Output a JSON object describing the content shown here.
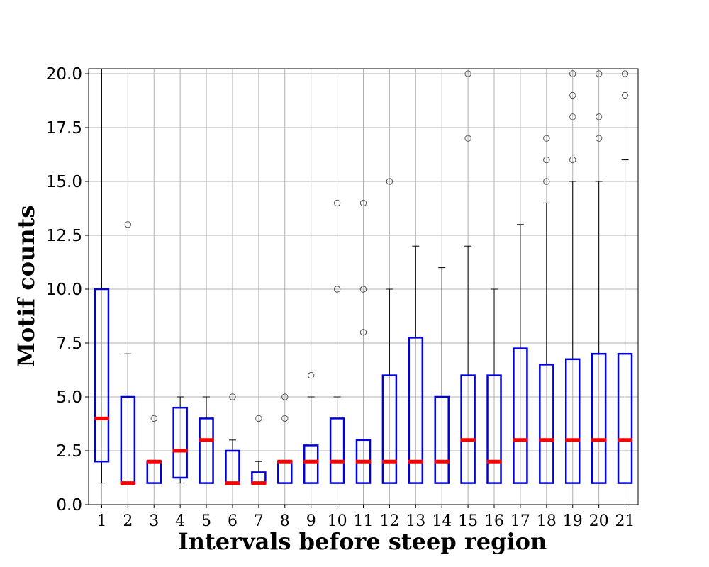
{
  "chart_data": {
    "type": "box",
    "title": "",
    "xlabel": "Intervals before steep region",
    "ylabel": "Motif counts",
    "ylim": [
      0,
      20.2
    ],
    "yticks": [
      "0.0",
      "2.5",
      "5.0",
      "7.5",
      "10.0",
      "12.5",
      "15.0",
      "17.5",
      "20.0"
    ],
    "grid": true,
    "colors": {
      "box": "#0000dd",
      "median": "#ff0000",
      "whisker": "#000000",
      "flier": "#555555",
      "grid": "#b0b0b0"
    },
    "categories": [
      "1",
      "2",
      "3",
      "4",
      "5",
      "6",
      "7",
      "8",
      "9",
      "10",
      "11",
      "12",
      "13",
      "14",
      "15",
      "16",
      "17",
      "18",
      "19",
      "20",
      "21"
    ],
    "boxes": [
      {
        "q1": 2,
        "median": 4,
        "q3": 10,
        "whislo": 1,
        "whishi": 20.2,
        "fliers": []
      },
      {
        "q1": 1,
        "median": 1,
        "q3": 5,
        "whislo": 1,
        "whishi": 7,
        "fliers": [
          13
        ]
      },
      {
        "q1": 1,
        "median": 2,
        "q3": 2,
        "whislo": 1,
        "whishi": 2,
        "fliers": [
          4
        ]
      },
      {
        "q1": 1.25,
        "median": 2.5,
        "q3": 4.5,
        "whislo": 1,
        "whishi": 5,
        "fliers": []
      },
      {
        "q1": 1,
        "median": 3,
        "q3": 4,
        "whislo": 1,
        "whishi": 5,
        "fliers": []
      },
      {
        "q1": 1,
        "median": 1,
        "q3": 2.5,
        "whislo": 1,
        "whishi": 3,
        "fliers": [
          5
        ]
      },
      {
        "q1": 1,
        "median": 1,
        "q3": 1.5,
        "whislo": 1,
        "whishi": 2,
        "fliers": [
          4
        ]
      },
      {
        "q1": 1,
        "median": 2,
        "q3": 2,
        "whislo": 1,
        "whishi": 2,
        "fliers": [
          4,
          5
        ]
      },
      {
        "q1": 1,
        "median": 2,
        "q3": 2.75,
        "whislo": 1,
        "whishi": 5,
        "fliers": [
          6
        ]
      },
      {
        "q1": 1,
        "median": 2,
        "q3": 4,
        "whislo": 1,
        "whishi": 5,
        "fliers": [
          10,
          14
        ]
      },
      {
        "q1": 1,
        "median": 2,
        "q3": 3,
        "whislo": 1,
        "whishi": 3,
        "fliers": [
          8,
          10,
          14
        ]
      },
      {
        "q1": 1,
        "median": 2,
        "q3": 6,
        "whislo": 1,
        "whishi": 10,
        "fliers": [
          15
        ]
      },
      {
        "q1": 1,
        "median": 2,
        "q3": 7.75,
        "whislo": 1,
        "whishi": 12,
        "fliers": []
      },
      {
        "q1": 1,
        "median": 2,
        "q3": 5,
        "whislo": 1,
        "whishi": 11,
        "fliers": []
      },
      {
        "q1": 1,
        "median": 3,
        "q3": 6,
        "whislo": 1,
        "whishi": 12,
        "fliers": [
          17,
          20
        ]
      },
      {
        "q1": 1,
        "median": 2,
        "q3": 6,
        "whislo": 1,
        "whishi": 10,
        "fliers": []
      },
      {
        "q1": 1,
        "median": 3,
        "q3": 7.25,
        "whislo": 1,
        "whishi": 13,
        "fliers": []
      },
      {
        "q1": 1,
        "median": 3,
        "q3": 6.5,
        "whislo": 1,
        "whishi": 14,
        "fliers": [
          15,
          16,
          17
        ]
      },
      {
        "q1": 1,
        "median": 3,
        "q3": 6.75,
        "whislo": 1,
        "whishi": 15,
        "fliers": [
          16,
          18,
          19,
          20
        ]
      },
      {
        "q1": 1,
        "median": 3,
        "q3": 7,
        "whislo": 1,
        "whishi": 15,
        "fliers": [
          17,
          18,
          20
        ]
      },
      {
        "q1": 1,
        "median": 3,
        "q3": 7,
        "whislo": 1,
        "whishi": 16,
        "fliers": [
          19,
          20
        ]
      }
    ]
  }
}
